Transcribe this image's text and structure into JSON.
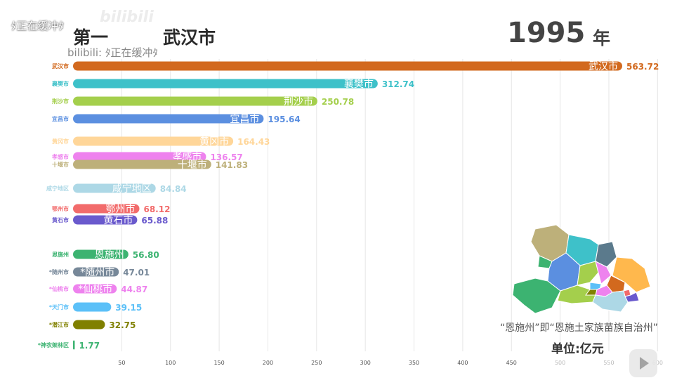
{
  "header": {
    "rank_label": "第一",
    "leader_name": "武汉市",
    "year": "1995",
    "year_unit": "年",
    "buffer_top": "ﾀ正在缓冲ﾀ",
    "buffer_sub": "bilibili: ﾀ正在缓冲ﾀ",
    "watermark": "bilibili"
  },
  "note": "“恩施州”即“恩施土家族苗族自治州”",
  "unit_label": "单位:亿元",
  "chart_data": {
    "type": "bar",
    "orientation": "horizontal",
    "title": "",
    "xlabel": "",
    "ylabel": "",
    "xlim": [
      0,
      600
    ],
    "xticks": [
      50,
      100,
      150,
      200,
      250,
      300,
      350,
      400,
      450,
      500,
      550,
      600
    ],
    "grid": true,
    "categories": [
      "武汉市",
      "襄樊市",
      "荆沙市",
      "宜昌市",
      "黄冈市",
      "孝感市",
      "十堰市",
      "咸宁地区",
      "鄂州市",
      "黄石市",
      "恩施州",
      "*随州市",
      "*仙桃市",
      "*天门市",
      "*潜江市",
      "*神农架林区"
    ],
    "values": [
      563.72,
      312.74,
      250.78,
      195.64,
      164.43,
      136.57,
      141.83,
      84.84,
      68.12,
      65.88,
      56.8,
      47.01,
      44.87,
      39.15,
      32.75,
      1.77
    ],
    "value_labels": [
      "563.72",
      "312.74",
      "250.78",
      "195.64",
      "164.43",
      "136.57",
      "141.83",
      "84.84",
      "68.12",
      "65.88",
      "56.80",
      "47.01",
      "44.87",
      "39.15",
      "32.75",
      "1.77"
    ],
    "colors": [
      "#D2691E",
      "#3EC1C9",
      "#A4CF4C",
      "#5B8FE0",
      "#FFD699",
      "#EE82EE",
      "#BDB07A",
      "#ADD8E6",
      "#F26B6B",
      "#6A5ACD",
      "#3CB371",
      "#778899",
      "#EE82EE",
      "#5BC0F8",
      "#808000",
      "#3CB371"
    ]
  },
  "map_regions": [
    {
      "name": "enshi",
      "color": "#3CB371"
    },
    {
      "name": "shiyan",
      "color": "#BDB07A"
    },
    {
      "name": "xiangfan",
      "color": "#3EC1C9"
    },
    {
      "name": "suizhou",
      "color": "#5B7A8C"
    },
    {
      "name": "yichang",
      "color": "#5B8FE0"
    },
    {
      "name": "jingmen",
      "color": "#A4CF4C"
    },
    {
      "name": "xiaogan",
      "color": "#EE82EE"
    },
    {
      "name": "huanggang",
      "color": "#FFB84D"
    },
    {
      "name": "jingzhou",
      "color": "#A4CF4C"
    },
    {
      "name": "wuhan",
      "color": "#D2691E"
    },
    {
      "name": "xianning",
      "color": "#ADD8E6"
    },
    {
      "name": "huangshi",
      "color": "#6A5ACD"
    },
    {
      "name": "ezhou",
      "color": "#F26B6B"
    },
    {
      "name": "shennongjia",
      "color": "#3CB371"
    },
    {
      "name": "tianmen",
      "color": "#5BC0F8"
    },
    {
      "name": "qianjiang",
      "color": "#808000"
    },
    {
      "name": "xiantao",
      "color": "#EE82EE"
    }
  ]
}
